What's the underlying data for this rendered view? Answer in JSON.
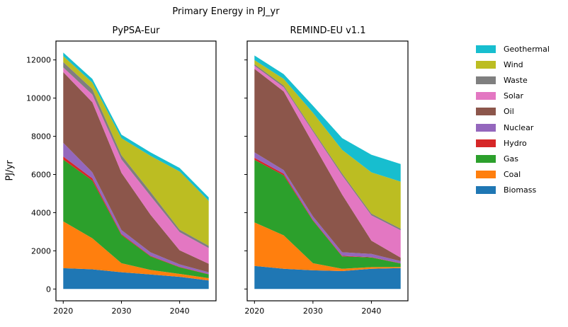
{
  "figure": {
    "title": "Primary Energy in PJ_yr",
    "ylabel": "PJ/yr",
    "background": "#ffffff"
  },
  "legend": {
    "position": "right",
    "entries": [
      {
        "label": "Geothermal",
        "color": "#17becf"
      },
      {
        "label": "Wind",
        "color": "#bcbd22"
      },
      {
        "label": "Waste",
        "color": "#7f7f7f"
      },
      {
        "label": "Solar",
        "color": "#e377c2"
      },
      {
        "label": "Oil",
        "color": "#8c564b"
      },
      {
        "label": "Nuclear",
        "color": "#9467bd"
      },
      {
        "label": "Hydro",
        "color": "#d62728"
      },
      {
        "label": "Gas",
        "color": "#2ca02c"
      },
      {
        "label": "Coal",
        "color": "#ff7f0e"
      },
      {
        "label": "Biomass",
        "color": "#1f77b4"
      }
    ]
  },
  "chart_data": [
    {
      "type": "area",
      "stacked": true,
      "title": "PyPSA-Eur",
      "x": [
        2020,
        2025,
        2030,
        2035,
        2040,
        2045
      ],
      "x_ticks": [
        2020,
        2030,
        2040
      ],
      "y_ticks": [
        0,
        2000,
        4000,
        6000,
        8000,
        10000,
        12000
      ],
      "xlim": [
        2018.75,
        2046.25
      ],
      "ylim": [
        -618,
        12988
      ],
      "show_y_tick_labels": true,
      "grid": false,
      "series": [
        {
          "name": "Biomass",
          "color": "#1f77b4",
          "values": [
            1090,
            1030,
            880,
            760,
            640,
            450
          ]
        },
        {
          "name": "Coal",
          "color": "#ff7f0e",
          "values": [
            2450,
            1630,
            470,
            240,
            150,
            120
          ]
        },
        {
          "name": "Gas",
          "color": "#2ca02c",
          "values": [
            3240,
            3020,
            1480,
            710,
            350,
            200
          ]
        },
        {
          "name": "Hydro",
          "color": "#d62728",
          "values": [
            160,
            120,
            50,
            30,
            20,
            15
          ]
        },
        {
          "name": "Nuclear",
          "color": "#9467bd",
          "values": [
            720,
            310,
            210,
            180,
            130,
            90
          ]
        },
        {
          "name": "Oil",
          "color": "#8c564b",
          "values": [
            3700,
            3670,
            3000,
            1970,
            740,
            450
          ]
        },
        {
          "name": "Solar",
          "color": "#e377c2",
          "values": [
            245,
            405,
            700,
            990,
            950,
            820
          ]
        },
        {
          "name": "Waste",
          "color": "#7f7f7f",
          "values": [
            285,
            285,
            220,
            210,
            130,
            120
          ]
        },
        {
          "name": "Wind",
          "color": "#bcbd22",
          "values": [
            310,
            340,
            890,
            1880,
            3050,
            2350
          ]
        },
        {
          "name": "Geothermal",
          "color": "#17becf",
          "values": [
            185,
            195,
            185,
            185,
            185,
            185
          ]
        }
      ]
    },
    {
      "type": "area",
      "stacked": true,
      "title": "REMIND-EU v1.1",
      "x": [
        2020,
        2025,
        2030,
        2035,
        2040,
        2045
      ],
      "x_ticks": [
        2020,
        2030,
        2040
      ],
      "y_ticks": [
        0,
        2000,
        4000,
        6000,
        8000,
        10000,
        12000
      ],
      "xlim": [
        2018.75,
        2046.25
      ],
      "ylim": [
        -618,
        12988
      ],
      "show_y_tick_labels": false,
      "grid": false,
      "series": [
        {
          "name": "Biomass",
          "color": "#1f77b4",
          "values": [
            1210,
            1060,
            980,
            940,
            1060,
            1100
          ]
        },
        {
          "name": "Coal",
          "color": "#ff7f0e",
          "values": [
            2280,
            1750,
            370,
            120,
            85,
            50
          ]
        },
        {
          "name": "Gas",
          "color": "#2ca02c",
          "values": [
            3275,
            3140,
            2230,
            650,
            510,
            185
          ]
        },
        {
          "name": "Hydro",
          "color": "#d62728",
          "values": [
            110,
            90,
            40,
            30,
            20,
            15
          ]
        },
        {
          "name": "Nuclear",
          "color": "#9467bd",
          "values": [
            285,
            185,
            185,
            185,
            160,
            110
          ]
        },
        {
          "name": "Oil",
          "color": "#8c564b",
          "values": [
            4375,
            4125,
            3820,
            3020,
            700,
            185
          ]
        },
        {
          "name": "Solar",
          "color": "#e377c2",
          "values": [
            160,
            220,
            620,
            1010,
            1320,
            1430
          ]
        },
        {
          "name": "Waste",
          "color": "#7f7f7f",
          "values": [
            85,
            90,
            85,
            100,
            95,
            90
          ]
        },
        {
          "name": "Wind",
          "color": "#bcbd22",
          "values": [
            210,
            345,
            900,
            1230,
            2160,
            2460
          ]
        },
        {
          "name": "Geothermal",
          "color": "#17becf",
          "values": [
            240,
            250,
            370,
            620,
            925,
            925
          ]
        }
      ]
    }
  ]
}
